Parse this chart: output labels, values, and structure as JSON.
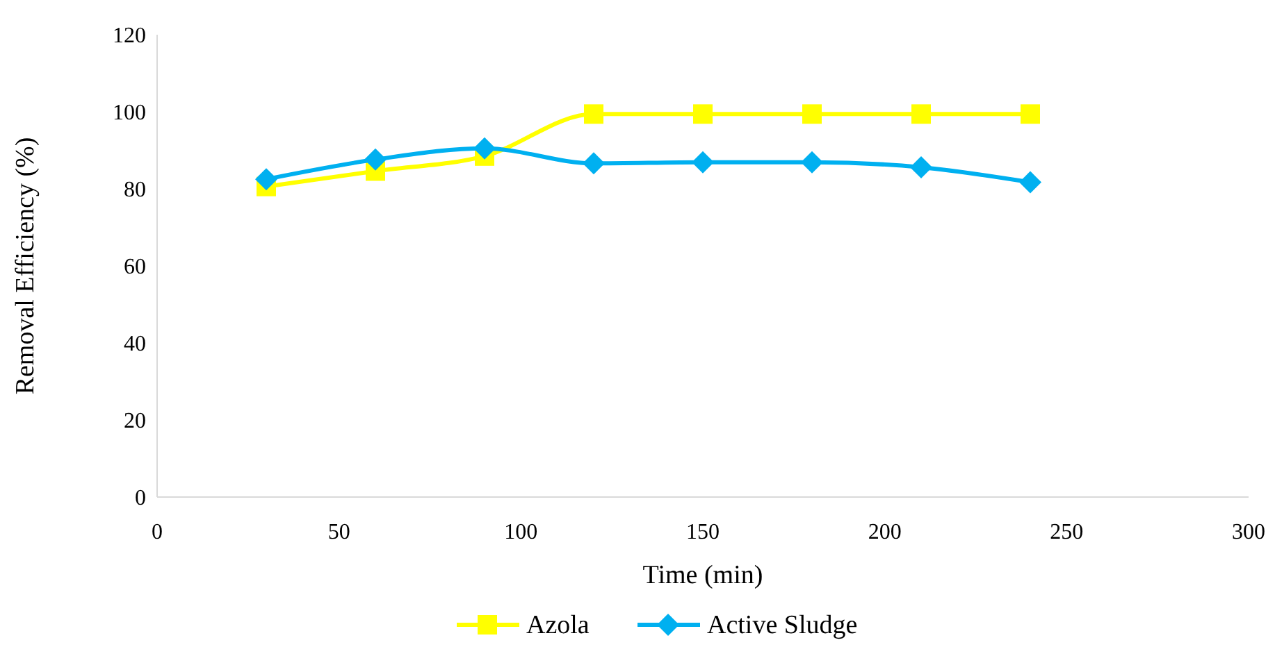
{
  "chart_data": {
    "type": "line",
    "xlabel": "Time (min)",
    "ylabel": "Removal Efficiency (%)",
    "x": [
      30,
      60,
      90,
      120,
      150,
      180,
      210,
      240
    ],
    "series": [
      {
        "name": "Azola",
        "color": "#ffff00",
        "marker": "square",
        "values": [
          80.6,
          84.6,
          88.5,
          99.4,
          99.4,
          99.4,
          99.4,
          99.4
        ]
      },
      {
        "name": "Active Sludge",
        "color": "#00b0f0",
        "marker": "diamond",
        "values": [
          82.5,
          87.6,
          90.5,
          86.6,
          86.9,
          86.9,
          85.6,
          81.7
        ]
      }
    ],
    "xlim": [
      0,
      300
    ],
    "xticks": [
      0,
      50,
      100,
      150,
      200,
      250,
      300
    ],
    "ylim": [
      0,
      120
    ],
    "yticks": [
      0,
      20,
      40,
      60,
      80,
      100,
      120
    ],
    "grid": false,
    "legend": "bottom"
  }
}
